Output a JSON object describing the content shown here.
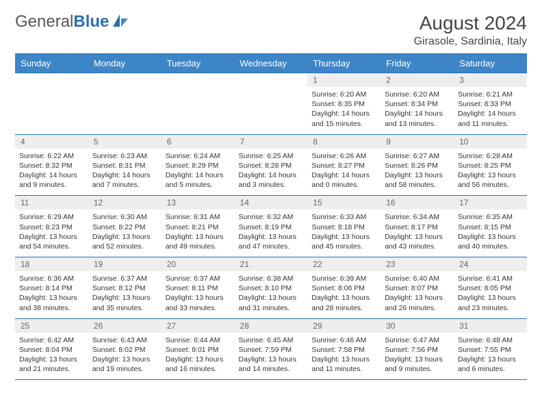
{
  "brand": {
    "part1": "General",
    "part2": "Blue"
  },
  "title": "August 2024",
  "location": "Girasole, Sardinia, Italy",
  "colors": {
    "header_bg": "#3d85c6",
    "header_border": "#2a6fb5",
    "daynum_bg": "#eeeeee",
    "text": "#333333",
    "brand_blue": "#2a6fb5"
  },
  "weekdays": [
    "Sunday",
    "Monday",
    "Tuesday",
    "Wednesday",
    "Thursday",
    "Friday",
    "Saturday"
  ],
  "weeks": [
    [
      null,
      null,
      null,
      null,
      {
        "n": "1",
        "sunrise": "6:20 AM",
        "sunset": "8:35 PM",
        "day": "14 hours and 15 minutes."
      },
      {
        "n": "2",
        "sunrise": "6:20 AM",
        "sunset": "8:34 PM",
        "day": "14 hours and 13 minutes."
      },
      {
        "n": "3",
        "sunrise": "6:21 AM",
        "sunset": "8:33 PM",
        "day": "14 hours and 11 minutes."
      }
    ],
    [
      {
        "n": "4",
        "sunrise": "6:22 AM",
        "sunset": "8:32 PM",
        "day": "14 hours and 9 minutes."
      },
      {
        "n": "5",
        "sunrise": "6:23 AM",
        "sunset": "8:31 PM",
        "day": "14 hours and 7 minutes."
      },
      {
        "n": "6",
        "sunrise": "6:24 AM",
        "sunset": "8:29 PM",
        "day": "14 hours and 5 minutes."
      },
      {
        "n": "7",
        "sunrise": "6:25 AM",
        "sunset": "8:28 PM",
        "day": "14 hours and 3 minutes."
      },
      {
        "n": "8",
        "sunrise": "6:26 AM",
        "sunset": "8:27 PM",
        "day": "14 hours and 0 minutes."
      },
      {
        "n": "9",
        "sunrise": "6:27 AM",
        "sunset": "8:26 PM",
        "day": "13 hours and 58 minutes."
      },
      {
        "n": "10",
        "sunrise": "6:28 AM",
        "sunset": "8:25 PM",
        "day": "13 hours and 56 minutes."
      }
    ],
    [
      {
        "n": "11",
        "sunrise": "6:29 AM",
        "sunset": "8:23 PM",
        "day": "13 hours and 54 minutes."
      },
      {
        "n": "12",
        "sunrise": "6:30 AM",
        "sunset": "8:22 PM",
        "day": "13 hours and 52 minutes."
      },
      {
        "n": "13",
        "sunrise": "6:31 AM",
        "sunset": "8:21 PM",
        "day": "13 hours and 49 minutes."
      },
      {
        "n": "14",
        "sunrise": "6:32 AM",
        "sunset": "8:19 PM",
        "day": "13 hours and 47 minutes."
      },
      {
        "n": "15",
        "sunrise": "6:33 AM",
        "sunset": "8:18 PM",
        "day": "13 hours and 45 minutes."
      },
      {
        "n": "16",
        "sunrise": "6:34 AM",
        "sunset": "8:17 PM",
        "day": "13 hours and 43 minutes."
      },
      {
        "n": "17",
        "sunrise": "6:35 AM",
        "sunset": "8:15 PM",
        "day": "13 hours and 40 minutes."
      }
    ],
    [
      {
        "n": "18",
        "sunrise": "6:36 AM",
        "sunset": "8:14 PM",
        "day": "13 hours and 38 minutes."
      },
      {
        "n": "19",
        "sunrise": "6:37 AM",
        "sunset": "8:12 PM",
        "day": "13 hours and 35 minutes."
      },
      {
        "n": "20",
        "sunrise": "6:37 AM",
        "sunset": "8:11 PM",
        "day": "13 hours and 33 minutes."
      },
      {
        "n": "21",
        "sunrise": "6:38 AM",
        "sunset": "8:10 PM",
        "day": "13 hours and 31 minutes."
      },
      {
        "n": "22",
        "sunrise": "6:39 AM",
        "sunset": "8:08 PM",
        "day": "13 hours and 28 minutes."
      },
      {
        "n": "23",
        "sunrise": "6:40 AM",
        "sunset": "8:07 PM",
        "day": "13 hours and 26 minutes."
      },
      {
        "n": "24",
        "sunrise": "6:41 AM",
        "sunset": "8:05 PM",
        "day": "13 hours and 23 minutes."
      }
    ],
    [
      {
        "n": "25",
        "sunrise": "6:42 AM",
        "sunset": "8:04 PM",
        "day": "13 hours and 21 minutes."
      },
      {
        "n": "26",
        "sunrise": "6:43 AM",
        "sunset": "8:02 PM",
        "day": "13 hours and 19 minutes."
      },
      {
        "n": "27",
        "sunrise": "6:44 AM",
        "sunset": "8:01 PM",
        "day": "13 hours and 16 minutes."
      },
      {
        "n": "28",
        "sunrise": "6:45 AM",
        "sunset": "7:59 PM",
        "day": "13 hours and 14 minutes."
      },
      {
        "n": "29",
        "sunrise": "6:46 AM",
        "sunset": "7:58 PM",
        "day": "13 hours and 11 minutes."
      },
      {
        "n": "30",
        "sunrise": "6:47 AM",
        "sunset": "7:56 PM",
        "day": "13 hours and 9 minutes."
      },
      {
        "n": "31",
        "sunrise": "6:48 AM",
        "sunset": "7:55 PM",
        "day": "13 hours and 6 minutes."
      }
    ]
  ],
  "labels": {
    "sunrise": "Sunrise: ",
    "sunset": "Sunset: ",
    "daylight": "Daylight: "
  }
}
